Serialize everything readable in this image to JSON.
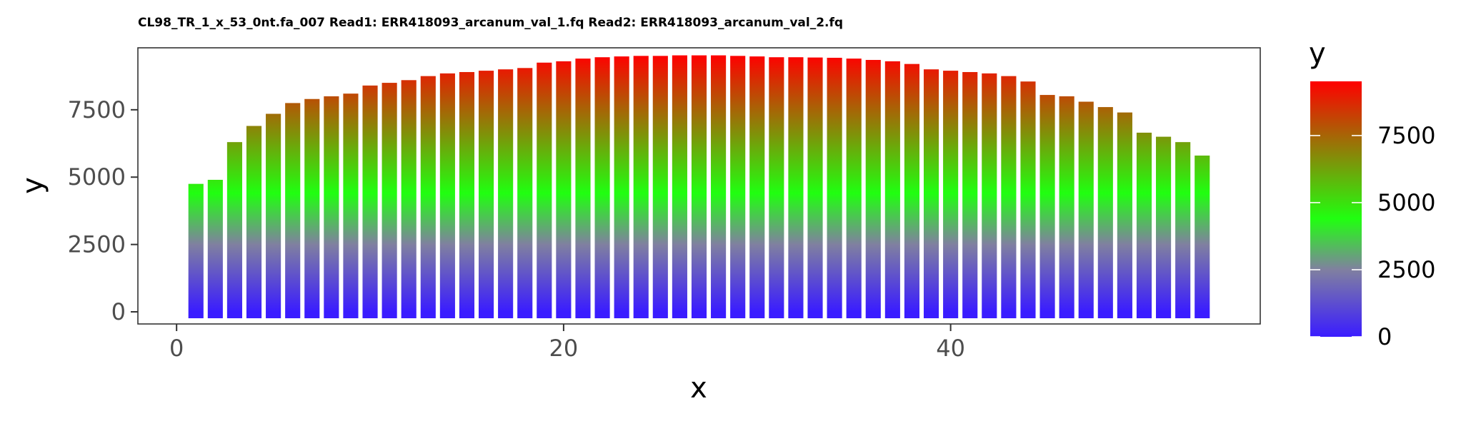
{
  "chart_data": {
    "type": "bar",
    "title": "CL98_TR_1_x_53_0nt.fa_007 Read1: ERR418093_arcanum_val_1.fq Read2: ERR418093_arcanum_val_2.fq",
    "xlabel": "x",
    "ylabel": "y",
    "xlim": [
      -2,
      56
    ],
    "ylim": [
      -450,
      9800
    ],
    "x_ticks": [
      0,
      20,
      40
    ],
    "y_ticks": [
      0,
      2500,
      5000,
      7500
    ],
    "x": [
      1,
      2,
      3,
      4,
      5,
      6,
      7,
      8,
      9,
      10,
      11,
      12,
      13,
      14,
      15,
      16,
      17,
      18,
      19,
      20,
      21,
      22,
      23,
      24,
      25,
      26,
      27,
      28,
      29,
      30,
      31,
      32,
      33,
      34,
      35,
      36,
      37,
      38,
      39,
      40,
      41,
      42,
      43,
      44,
      45,
      46,
      47,
      48,
      49,
      50,
      51,
      52,
      53
    ],
    "values": [
      4750,
      4900,
      6300,
      6900,
      7350,
      7750,
      7900,
      8000,
      8100,
      8400,
      8500,
      8600,
      8750,
      8850,
      8900,
      8950,
      9000,
      9050,
      9250,
      9300,
      9400,
      9450,
      9480,
      9500,
      9500,
      9520,
      9520,
      9520,
      9500,
      9480,
      9450,
      9450,
      9440,
      9430,
      9400,
      9350,
      9300,
      9200,
      9000,
      8950,
      8900,
      8850,
      8750,
      8550,
      8050,
      8000,
      7800,
      7600,
      7400,
      6650,
      6500,
      6300,
      5800
    ],
    "grid": false,
    "color_scale": {
      "title": "y",
      "breaks": [
        0,
        2500,
        5000,
        7500
      ],
      "range": [
        0,
        9520
      ],
      "colors": [
        "#3a1cff",
        "#8080a0",
        "#20ff10",
        "#ff0000"
      ]
    }
  }
}
